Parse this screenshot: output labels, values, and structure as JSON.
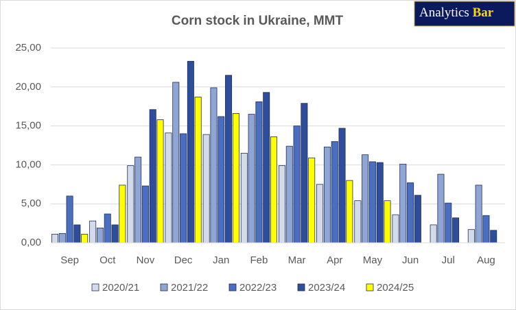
{
  "chart_data": {
    "type": "bar",
    "title": "Corn stock in Ukraine, MMT",
    "logo": {
      "text": "Analytics",
      "accent": "Bar"
    },
    "categories": [
      "Sep",
      "Oct",
      "Nov",
      "Dec",
      "Jan",
      "Feb",
      "Mar",
      "Apr",
      "May",
      "Jun",
      "Jul",
      "Aug"
    ],
    "series": [
      {
        "name": "2020/21",
        "color": "#d3dbea",
        "values": [
          1.1,
          2.8,
          9.9,
          14.1,
          13.9,
          11.5,
          9.9,
          7.5,
          5.4,
          3.6,
          2.3,
          1.7
        ]
      },
      {
        "name": "2021/22",
        "color": "#8fa6d4",
        "values": [
          1.2,
          1.9,
          11.0,
          20.6,
          19.9,
          16.5,
          12.4,
          12.3,
          11.3,
          10.1,
          8.8,
          7.4
        ]
      },
      {
        "name": "2022/23",
        "color": "#4a6fc0",
        "values": [
          6.0,
          3.7,
          7.3,
          14.0,
          16.2,
          18.1,
          15.0,
          13.0,
          10.4,
          7.7,
          5.1,
          3.5
        ]
      },
      {
        "name": "2023/24",
        "color": "#2e4e9c",
        "values": [
          2.3,
          2.3,
          17.1,
          23.3,
          21.5,
          19.3,
          17.9,
          14.7,
          10.3,
          6.1,
          3.2,
          1.6
        ]
      },
      {
        "name": "2024/25",
        "color": "#ffff00",
        "values": [
          1.1,
          7.4,
          15.8,
          18.7,
          16.6,
          13.6,
          10.9,
          8.0,
          5.4,
          null,
          null,
          null
        ]
      }
    ],
    "ylim": [
      0,
      25
    ],
    "yticks": [
      {
        "value": 0,
        "label": "0,00"
      },
      {
        "value": 5,
        "label": "5,00"
      },
      {
        "value": 10,
        "label": "10,00"
      },
      {
        "value": 15,
        "label": "15,00"
      },
      {
        "value": 20,
        "label": "20,00"
      },
      {
        "value": 25,
        "label": "25,00"
      }
    ],
    "grid": true
  }
}
